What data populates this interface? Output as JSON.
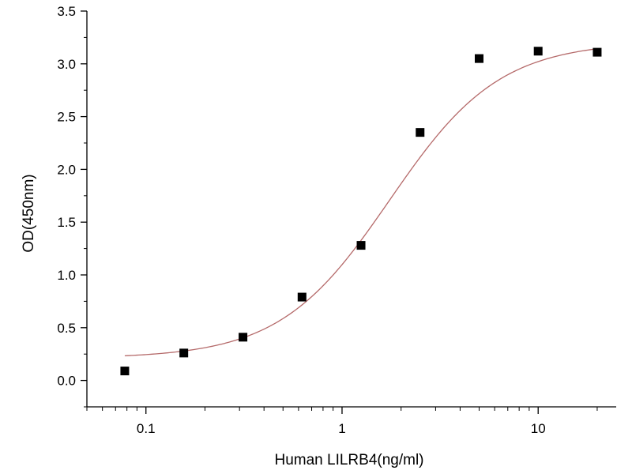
{
  "chart_data": {
    "type": "scatter",
    "title": "",
    "xlabel": "Human LILRB4(ng/ml)",
    "ylabel": "OD(450nm)",
    "x_scale": "log",
    "xlim": [
      0.05,
      25
    ],
    "ylim": [
      -0.25,
      3.5
    ],
    "x_ticks": [
      0.1,
      1,
      10
    ],
    "x_tick_labels": [
      "0.1",
      "1",
      "10"
    ],
    "y_ticks": [
      0.0,
      0.5,
      1.0,
      1.5,
      2.0,
      2.5,
      3.0,
      3.5
    ],
    "y_tick_labels": [
      "0.0",
      "0.5",
      "1.0",
      "1.5",
      "2.0",
      "2.5",
      "3.0",
      "3.5"
    ],
    "grid": false,
    "legend": "none",
    "series": [
      {
        "kind": "points",
        "marker": "square",
        "color": "#000000",
        "x": [
          0.078,
          0.156,
          0.3125,
          0.625,
          1.25,
          2.5,
          5,
          10,
          20
        ],
        "y": [
          0.09,
          0.26,
          0.41,
          0.79,
          1.28,
          2.35,
          3.05,
          3.12,
          3.11
        ]
      },
      {
        "kind": "fit",
        "model": "4PL",
        "color": "#b56a6a",
        "bottom": 0.21,
        "top": 3.21,
        "ec50": 1.75,
        "hill": 1.55,
        "x_range": [
          0.078,
          20
        ]
      }
    ]
  }
}
